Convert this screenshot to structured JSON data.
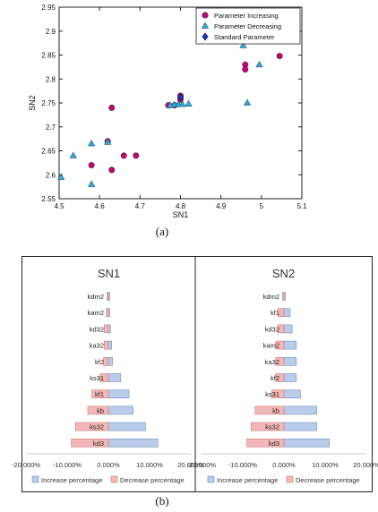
{
  "chart_data": [
    {
      "type": "scatter",
      "xlabel": "SN1",
      "ylabel": "SN2",
      "xlim": [
        4.5,
        5.1
      ],
      "ylim": [
        2.55,
        2.95
      ],
      "x_ticks": [
        "4.5",
        "4.6",
        "4.7",
        "4.8",
        "4.9",
        "5",
        "5.1"
      ],
      "y_ticks": [
        "2.55",
        "2.6",
        "2.65",
        "2.7",
        "2.75",
        "2.8",
        "2.85",
        "2.9",
        "2.95"
      ],
      "grid": false,
      "legend_position": "top-right",
      "series": [
        {
          "name": "Parameter Increasing",
          "color": "#cc0077",
          "marker": "circle",
          "points": [
            {
              "x": 4.63,
              "y": 2.74
            },
            {
              "x": 4.62,
              "y": 2.67
            },
            {
              "x": 4.58,
              "y": 2.62
            },
            {
              "x": 4.63,
              "y": 2.61
            },
            {
              "x": 4.66,
              "y": 2.64
            },
            {
              "x": 4.69,
              "y": 2.64
            },
            {
              "x": 4.77,
              "y": 2.745
            },
            {
              "x": 4.785,
              "y": 2.745
            },
            {
              "x": 4.8,
              "y": 2.765
            },
            {
              "x": 4.8,
              "y": 2.757
            },
            {
              "x": 4.96,
              "y": 2.83
            },
            {
              "x": 4.96,
              "y": 2.82
            },
            {
              "x": 5.045,
              "y": 2.848
            }
          ]
        },
        {
          "name": "Parameter Decreasing",
          "color": "#33aadd",
          "marker": "triangle",
          "points": [
            {
              "x": 4.505,
              "y": 2.595
            },
            {
              "x": 4.535,
              "y": 2.64
            },
            {
              "x": 4.58,
              "y": 2.665
            },
            {
              "x": 4.58,
              "y": 2.58
            },
            {
              "x": 4.62,
              "y": 2.668
            },
            {
              "x": 4.775,
              "y": 2.745
            },
            {
              "x": 4.785,
              "y": 2.746
            },
            {
              "x": 4.795,
              "y": 2.747
            },
            {
              "x": 4.805,
              "y": 2.747
            },
            {
              "x": 4.82,
              "y": 2.748
            },
            {
              "x": 4.955,
              "y": 2.87
            },
            {
              "x": 4.965,
              "y": 2.75
            },
            {
              "x": 4.995,
              "y": 2.83
            }
          ]
        },
        {
          "name": "Standard Parameter",
          "color": "#2233cc",
          "marker": "diamond",
          "points": [
            {
              "x": 4.8,
              "y": 2.762
            }
          ]
        }
      ]
    },
    {
      "type": "bar",
      "orientation": "horizontal",
      "panels": [
        {
          "title": "SN1",
          "categories": [
            "kdm2",
            "kam2",
            "kd32",
            "ka32",
            "kf2",
            "ks31",
            "kf1",
            "kb",
            "ks32",
            "kd3"
          ],
          "series": [
            {
              "name": "Increase percentage",
              "color": "#b9cdeb",
              "values": [
                0.0,
                0.3,
                0.5,
                0.8,
                1.0,
                3.0,
                5.0,
                6.0,
                9.0,
                12.0
              ]
            },
            {
              "name": "Decrease percentage",
              "color": "#f2b8b8",
              "values": [
                -0.3,
                -0.5,
                -1.0,
                -1.0,
                -1.2,
                -2.0,
                -4.0,
                -5.0,
                -8.0,
                -9.0
              ]
            }
          ],
          "x_ticks": [
            "-20.000%",
            "-10.000%",
            "0.000%",
            "10.000%",
            "20.000%"
          ],
          "xlim": [
            -20,
            20
          ]
        },
        {
          "title": "SN2",
          "categories": [
            "kdm2",
            "kf1",
            "kd32",
            "kam2",
            "ka32",
            "kf2",
            "ks31",
            "kb",
            "ks32",
            "kd3"
          ],
          "series": [
            {
              "name": "Increase percentage",
              "color": "#b9cdeb",
              "values": [
                0.2,
                1.5,
                2.0,
                3.0,
                3.0,
                3.0,
                4.0,
                8.0,
                8.0,
                11.0
              ]
            },
            {
              "name": "Decrease percentage",
              "color": "#f2b8b8",
              "values": [
                -0.2,
                -1.5,
                -1.5,
                -2.0,
                -2.0,
                -2.0,
                -3.0,
                -7.0,
                -8.0,
                -9.0
              ]
            }
          ],
          "x_ticks": [
            "-20.000%",
            "-10.000%",
            "0.000%",
            "10.000%",
            "20.000%"
          ],
          "xlim": [
            -20,
            20
          ]
        }
      ],
      "legend_position": "bottom"
    }
  ],
  "captions": {
    "a": "(a)",
    "b": "(b)"
  }
}
